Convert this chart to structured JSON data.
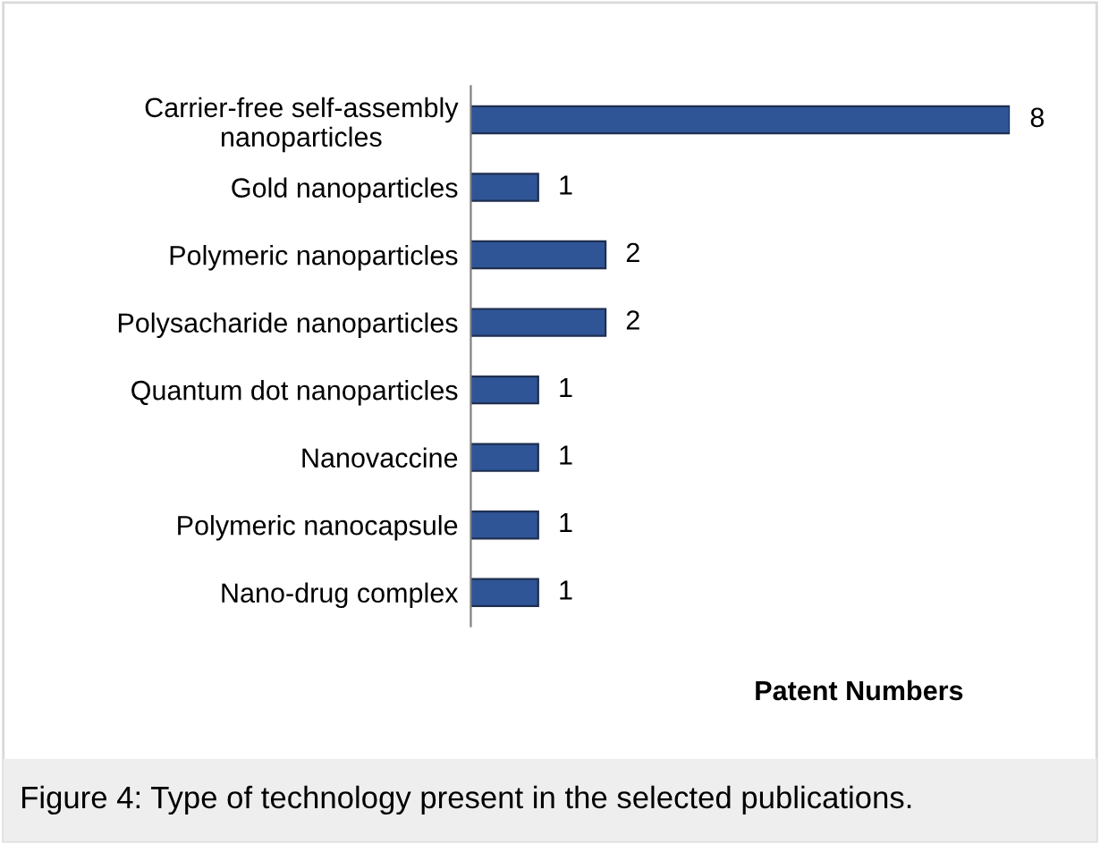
{
  "chart_data": {
    "type": "bar",
    "orientation": "horizontal",
    "xlabel": "Patent Numbers",
    "categories": [
      "Carrier-free self-assembly\nnanoparticles",
      "Gold nanoparticles",
      "Polymeric nanoparticles",
      "Polysacharide nanoparticles",
      "Quantum dot nanoparticles",
      "Nanovaccine",
      "Polymeric nanocapsule",
      "Nano-drug complex"
    ],
    "values": [
      8,
      1,
      2,
      2,
      1,
      1,
      1,
      1
    ],
    "color": "#2f5597",
    "data_labels": true,
    "tick_labels": "y",
    "grid": false,
    "annotations": [
      "Figure 4: Type of technology present in the selected publications."
    ]
  }
}
